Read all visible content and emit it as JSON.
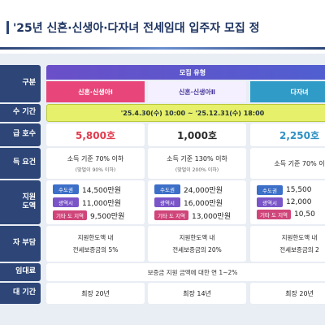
{
  "header": {
    "title": "'25년 신혼·신생아·다자녀 전세임대 입주자 모집 정"
  },
  "table": {
    "row_headers": [
      "구분",
      "수 기간",
      "급 호수",
      "득 요건",
      "지원\n도액",
      "자 부담",
      "임대료",
      "대 기간"
    ],
    "type_header": "모집 유형",
    "period": "'25.4.30(수) 10:00 ~ '25.12.31(수) 18:00",
    "rent": "보증금 지원 금액에 대한 연 1~2%",
    "columns": [
      {
        "name": "신혼·신생아Ⅰ",
        "supply": "5,800호",
        "income": "소득 기준 70% 이하",
        "income_note": "(맞벌이 90% 이하)",
        "limits": [
          {
            "region": "수도권",
            "amount": "14,500만원"
          },
          {
            "region": "광역시",
            "amount": "11,000만원"
          },
          {
            "region": "기타 도 지역",
            "amount": "9,500만원"
          }
        ],
        "burden": [
          "지원한도액 내",
          "전세보증금의 5%"
        ],
        "term": "최장 20년"
      },
      {
        "name": "신혼·신생아Ⅱ",
        "supply": "1,000호",
        "income": "소득 기준 130% 이하",
        "income_note": "(맞벌이 200% 이하)",
        "limits": [
          {
            "region": "수도권",
            "amount": "24,000만원"
          },
          {
            "region": "광역시",
            "amount": "16,000만원"
          },
          {
            "region": "기타 도 지역",
            "amount": "13,000만원"
          }
        ],
        "burden": [
          "지원한도액 내",
          "전세보증금의 20%"
        ],
        "term": "최장 14년"
      },
      {
        "name": "다자녀",
        "supply": "2,250호",
        "income": "소득 기준 70% 이",
        "limits": [
          {
            "region": "수도권",
            "amount": "15,500"
          },
          {
            "region": "광역시",
            "amount": "12,000"
          },
          {
            "region": "기타 도 지역",
            "amount": "10,50"
          }
        ],
        "burden": [
          "지원한도액 내",
          "전세보증금의 2"
        ],
        "term": "최장 20년"
      }
    ]
  }
}
